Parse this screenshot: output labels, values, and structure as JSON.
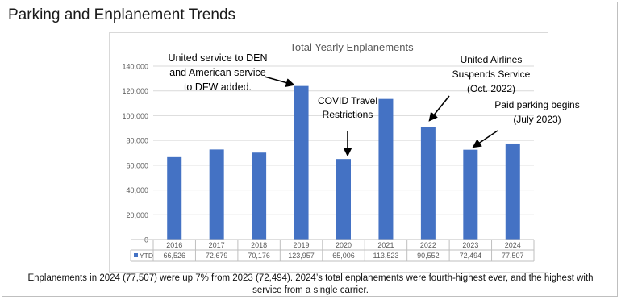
{
  "page": {
    "title": "Parking and Enplanement Trends",
    "caption": "Enplanements in 2024 (77,507) were up 7% from 2023 (72,494). 2024’s total enplanements were fourth-highest ever, and the highest with service from a single carrier."
  },
  "chart_data": {
    "type": "bar",
    "title": "Total Yearly Enplanements",
    "categories": [
      "2016",
      "2017",
      "2018",
      "2019",
      "2020",
      "2021",
      "2022",
      "2023",
      "2024"
    ],
    "series": [
      {
        "name": "YTD",
        "values": [
          66526,
          72679,
          70176,
          123957,
          65006,
          113523,
          90552,
          72494,
          77507
        ],
        "value_labels": [
          "66,526",
          "72,679",
          "70,176",
          "123,957",
          "65,006",
          "113,523",
          "90,552",
          "72,494",
          "77,507"
        ],
        "color": "#4472c4"
      }
    ],
    "ylim": [
      0,
      140000
    ],
    "yticks": [
      0,
      20000,
      40000,
      60000,
      80000,
      100000,
      120000,
      140000
    ],
    "ytick_labels": [
      "0",
      "20,000",
      "40,000",
      "60,000",
      "80,000",
      "100,000",
      "120,000",
      "140,000"
    ],
    "grid": true,
    "data_table": true,
    "annotations": [
      {
        "category": "2019",
        "lines": [
          "United service to DEN",
          "and American service",
          "to DFW added."
        ]
      },
      {
        "category": "2020",
        "lines": [
          "COVID Travel",
          "Restrictions"
        ]
      },
      {
        "category": "2022",
        "lines": [
          "United Airlines",
          "Suspends Service",
          "(Oct. 2022)"
        ]
      },
      {
        "category": "2023",
        "lines": [
          "Paid parking begins",
          "(July 2023)"
        ]
      }
    ]
  },
  "colors": {
    "bar": "#4472c4",
    "grid": "#d9d9d9",
    "axis_text": "#595959"
  }
}
